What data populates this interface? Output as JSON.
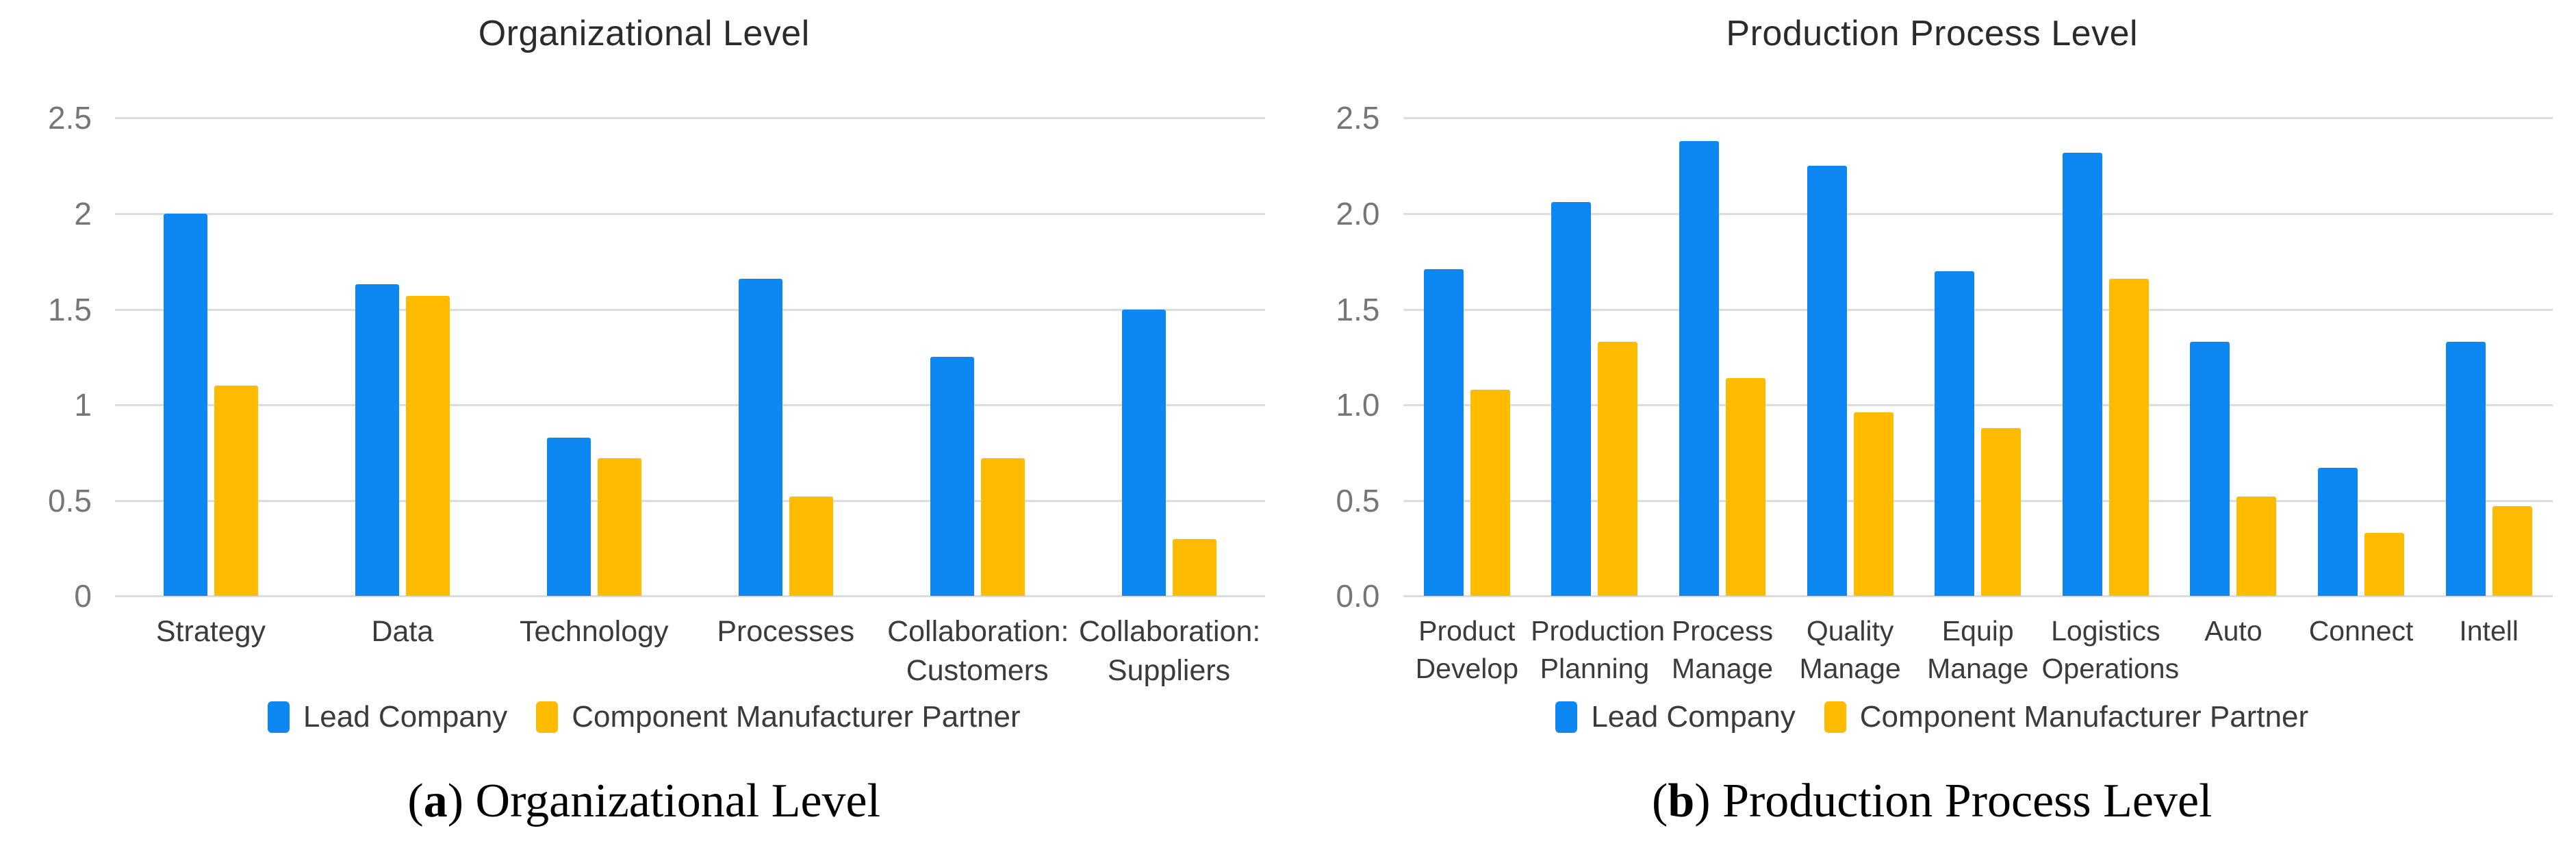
{
  "page": {
    "background": "#ffffff"
  },
  "colors": {
    "lead_company_blue": "#0d87f1",
    "partner_gold": "#ffbb00",
    "gridline_gray": "#dcdcdc",
    "axis_tick_text": "#767676",
    "label_text": "#3b3b3b",
    "title_text": "#2b2b2b"
  },
  "chart_data": [
    {
      "type": "bar",
      "title": "Organizational Level",
      "categories": [
        "Strategy",
        "Data",
        "Technology",
        "Processes",
        "Collaboration: Customers",
        "Collaboration: Suppliers"
      ],
      "series": [
        {
          "name": "Lead Company",
          "color": "#0d87f1",
          "values": [
            2.0,
            1.63,
            0.83,
            1.66,
            1.25,
            1.5
          ]
        },
        {
          "name": "Component Manufacturer Partner",
          "color": "#ffbb00",
          "values": [
            1.1,
            1.57,
            0.72,
            0.52,
            0.72,
            0.3
          ]
        }
      ],
      "ylim": [
        0,
        2.5
      ],
      "yticks": [
        "2.5",
        "2",
        "1.5",
        "1",
        "0.5",
        "0"
      ],
      "grid": true,
      "legend_position": "bottom"
    },
    {
      "type": "bar",
      "title": "Production Process Level",
      "categories": [
        "Product Develop",
        "Production Planning",
        "Process Manage",
        "Quality Manage",
        "Equip Manage",
        "Logistics Operations",
        "Auto",
        "Connect",
        "Intell"
      ],
      "series": [
        {
          "name": "Lead Company",
          "color": "#0d87f1",
          "values": [
            1.71,
            2.06,
            2.38,
            2.25,
            1.7,
            2.32,
            1.33,
            0.67,
            1.33
          ]
        },
        {
          "name": "Component Manufacturer Partner",
          "color": "#ffbb00",
          "values": [
            1.08,
            1.33,
            1.14,
            0.96,
            0.88,
            1.66,
            0.52,
            0.33,
            0.47
          ]
        }
      ],
      "ylim": [
        0,
        2.5
      ],
      "yticks": [
        "2.5",
        "2.0",
        "1.5",
        "1.0",
        "0.5",
        "0.0"
      ],
      "grid": true,
      "legend_position": "bottom"
    }
  ],
  "captions": [
    {
      "open": "(",
      "letter": "a",
      "close": ")",
      "text": " Organizational Level"
    },
    {
      "open": "(",
      "letter": "b",
      "close": ")",
      "text": " Production Process Level"
    }
  ]
}
